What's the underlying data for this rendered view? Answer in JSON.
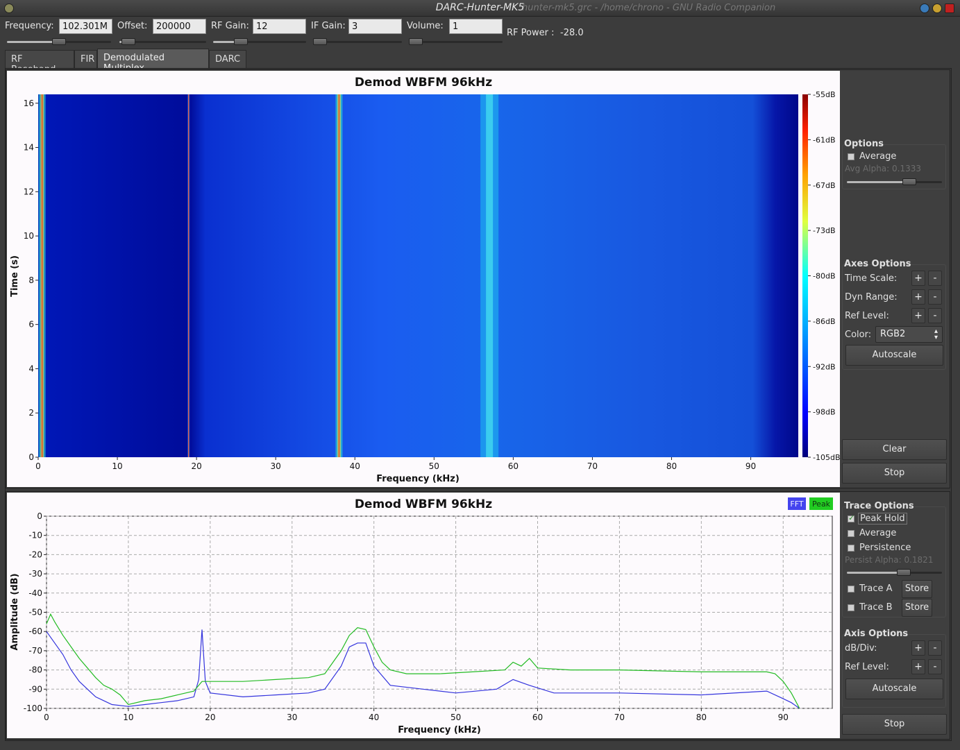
{
  "window": {
    "title": "DARC-Hunter-MK5",
    "ghost_title": "hunter-mk5.grc - /home/chrono - GNU Radio Companion"
  },
  "toolbar": {
    "frequency": {
      "label": "Frequency:",
      "value": "102.301M",
      "slider_fraction": 0.5
    },
    "offset": {
      "label": "Offset:",
      "value": "200000",
      "slider_fraction": 0.1
    },
    "rf_gain": {
      "label": "RF Gain:",
      "value": "12",
      "slider_fraction": 0.3
    },
    "if_gain": {
      "label": "IF Gain:",
      "value": "3",
      "slider_fraction": 0.07
    },
    "volume": {
      "label": "Volume:",
      "value": "1",
      "slider_fraction": 0.07
    },
    "rf_power_label": "RF Power :",
    "rf_power_value": "-28.0"
  },
  "tabs": [
    {
      "label": "RF Baseband",
      "active": false
    },
    {
      "label": "FIR",
      "active": false
    },
    {
      "label": "Demodulated Multiplex",
      "active": true
    },
    {
      "label": "DARC",
      "active": false
    }
  ],
  "waterfall": {
    "title": "Demod WBFM 96kHz",
    "xlabel": "Frequency (kHz)",
    "ylabel": "Time (s)",
    "x_ticks": [
      "0",
      "10",
      "20",
      "30",
      "40",
      "50",
      "60",
      "70",
      "80",
      "90"
    ],
    "y_ticks": [
      "0",
      "2",
      "4",
      "6",
      "8",
      "10",
      "12",
      "14",
      "16"
    ],
    "colorbar_labels": [
      "-55dB",
      "-61dB",
      "-67dB",
      "-73dB",
      "-80dB",
      "-86dB",
      "-92dB",
      "-98dB",
      "-105dB"
    ]
  },
  "waterfall_side": {
    "options_title": "Options",
    "average_label": "Average",
    "avg_alpha_label": "Avg Alpha: 0.1333",
    "avg_alpha_fraction": 0.66,
    "axes_title": "Axes Options",
    "time_scale_label": "Time Scale:",
    "dyn_range_label": "Dyn Range:",
    "ref_level_label": "Ref Level:",
    "color_label": "Color:",
    "color_value": "RGB2",
    "plus": "+",
    "minus": "-",
    "autoscale_label": "Autoscale",
    "clear_label": "Clear",
    "stop_label": "Stop"
  },
  "fft": {
    "title": "Demod WBFM 96kHz",
    "xlabel": "Frequency (kHz)",
    "ylabel": "Amplitude (dB)",
    "legend_fft": "FFT",
    "legend_peak": "Peak",
    "x_ticks": [
      "0",
      "10",
      "20",
      "30",
      "40",
      "50",
      "60",
      "70",
      "80",
      "90"
    ],
    "y_ticks": [
      "0",
      "-10",
      "-20",
      "-30",
      "-40",
      "-50",
      "-60",
      "-70",
      "-80",
      "-90",
      "-100"
    ]
  },
  "fft_side": {
    "trace_title": "Trace Options",
    "peak_hold_label": "Peak Hold",
    "average_label": "Average",
    "persistence_label": "Persistence",
    "persist_alpha_label": "Persist Alpha: 0.1821",
    "persist_alpha_fraction": 0.6,
    "trace_a_label": "Trace A",
    "trace_b_label": "Trace B",
    "store_label": "Store",
    "axis_title": "Axis Options",
    "db_div_label": "dB/Div:",
    "ref_level_label": "Ref Level:",
    "plus": "+",
    "minus": "-",
    "autoscale_label": "Autoscale",
    "stop_label": "Stop"
  },
  "chart_data": [
    {
      "type": "heatmap",
      "title": "Demod WBFM 96kHz",
      "xlabel": "Frequency (kHz)",
      "ylabel": "Time (s)",
      "xlim": [
        0,
        96
      ],
      "ylim": [
        0,
        16.4
      ],
      "colorbar_range_db": [
        -105,
        -55
      ],
      "features": [
        {
          "freq_khz": 0.5,
          "level": "high"
        },
        {
          "freq_khz": 19,
          "level": "pilot line"
        },
        {
          "freq_khz": 38,
          "level": "high"
        },
        {
          "freq_khz": 57,
          "level": "medium"
        }
      ]
    },
    {
      "type": "line",
      "title": "Demod WBFM 96kHz",
      "xlabel": "Frequency (kHz)",
      "ylabel": "Amplitude (dB)",
      "xlim": [
        0,
        96
      ],
      "ylim": [
        -100,
        0
      ],
      "grid": true,
      "legend": "top-right",
      "series": [
        {
          "name": "FFT",
          "color": "#3333dd",
          "x": [
            0,
            1,
            2,
            3,
            4,
            5,
            6,
            7,
            8,
            10,
            12,
            14,
            16,
            18,
            18.6,
            19,
            19.4,
            20,
            24,
            28,
            32,
            34,
            36,
            37,
            38,
            39,
            40,
            42,
            46,
            50,
            55,
            57,
            59,
            62,
            70,
            80,
            88,
            90,
            91,
            92
          ],
          "y": [
            -60,
            -66,
            -72,
            -80,
            -86,
            -90,
            -94,
            -96,
            -98,
            -99,
            -98,
            -97,
            -96,
            -94,
            -85,
            -59,
            -86,
            -92,
            -94,
            -93,
            -92,
            -90,
            -78,
            -68,
            -66,
            -66,
            -78,
            -88,
            -90,
            -92,
            -90,
            -85,
            -88,
            -92,
            -92,
            -93,
            -91,
            -95,
            -97,
            -100
          ]
        },
        {
          "name": "Peak",
          "color": "#22bb22",
          "x": [
            0,
            0.5,
            1,
            2,
            3,
            4,
            5,
            6,
            7,
            8,
            9,
            10,
            12,
            14,
            16,
            18,
            19,
            20,
            24,
            28,
            32,
            34,
            35,
            36,
            37,
            38,
            39,
            40,
            41,
            42,
            44,
            48,
            52,
            56,
            57,
            58,
            59,
            60,
            64,
            70,
            80,
            88,
            89,
            90,
            91,
            92
          ],
          "y": [
            -56,
            -51,
            -55,
            -62,
            -68,
            -74,
            -79,
            -84,
            -88,
            -90,
            -93,
            -98,
            -96,
            -95,
            -93,
            -91,
            -86,
            -86,
            -86,
            -85,
            -84,
            -82,
            -76,
            -70,
            -62,
            -58,
            -59,
            -68,
            -76,
            -80,
            -82,
            -82,
            -81,
            -80,
            -76,
            -78,
            -74,
            -79,
            -80,
            -80,
            -81,
            -81,
            -82,
            -86,
            -92,
            -100
          ]
        }
      ]
    }
  ]
}
